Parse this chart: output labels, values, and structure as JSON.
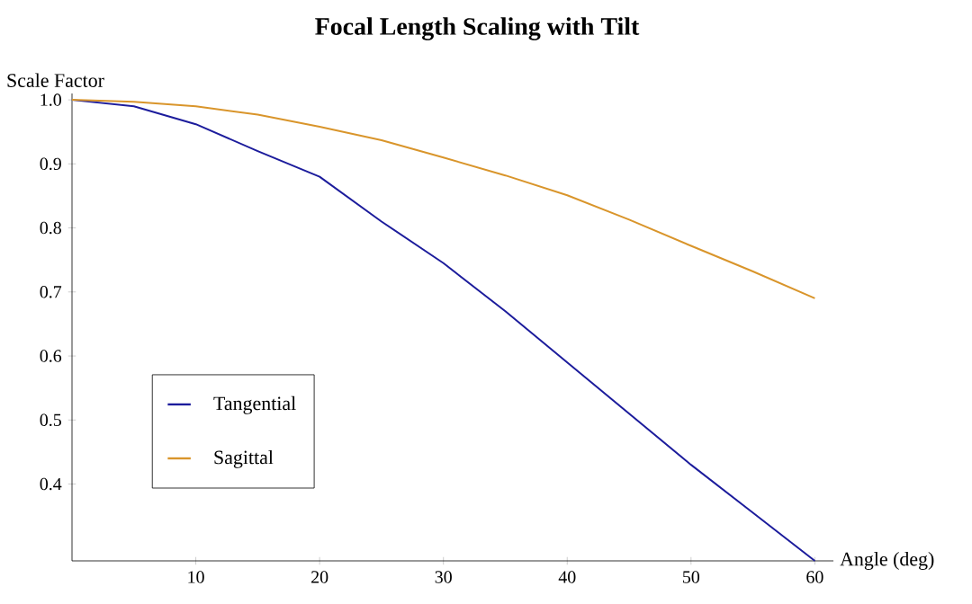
{
  "chart_data": {
    "type": "line",
    "title": "Focal Length Scaling with Tilt",
    "xlabel": "Angle (deg)",
    "ylabel": "Scale Factor",
    "x": [
      0,
      5,
      10,
      15,
      20,
      25,
      30,
      35,
      40,
      45,
      50,
      55,
      60
    ],
    "series": [
      {
        "name": "Tangential",
        "color": "#1c1c9c",
        "values": [
          1.0,
          0.99,
          0.962,
          0.92,
          0.88,
          0.81,
          0.745,
          0.67,
          0.59,
          0.51,
          0.43,
          0.355,
          0.28
        ]
      },
      {
        "name": "Sagittal",
        "color": "#d9952b",
        "values": [
          1.0,
          0.997,
          0.99,
          0.977,
          0.958,
          0.937,
          0.91,
          0.882,
          0.851,
          0.813,
          0.772,
          0.732,
          0.69
        ]
      }
    ],
    "xlim": [
      0,
      61.5
    ],
    "ylim": [
      0.28,
      1.01
    ],
    "xticks": [
      10,
      20,
      30,
      40,
      50,
      60
    ],
    "yticks": [
      0.4,
      0.5,
      0.6,
      0.7,
      0.8,
      0.9,
      {
        "value": 1,
        "label": "1.0"
      }
    ],
    "legend": "bottom left",
    "grid": false,
    "marker": "none",
    "line_style": "solid"
  }
}
